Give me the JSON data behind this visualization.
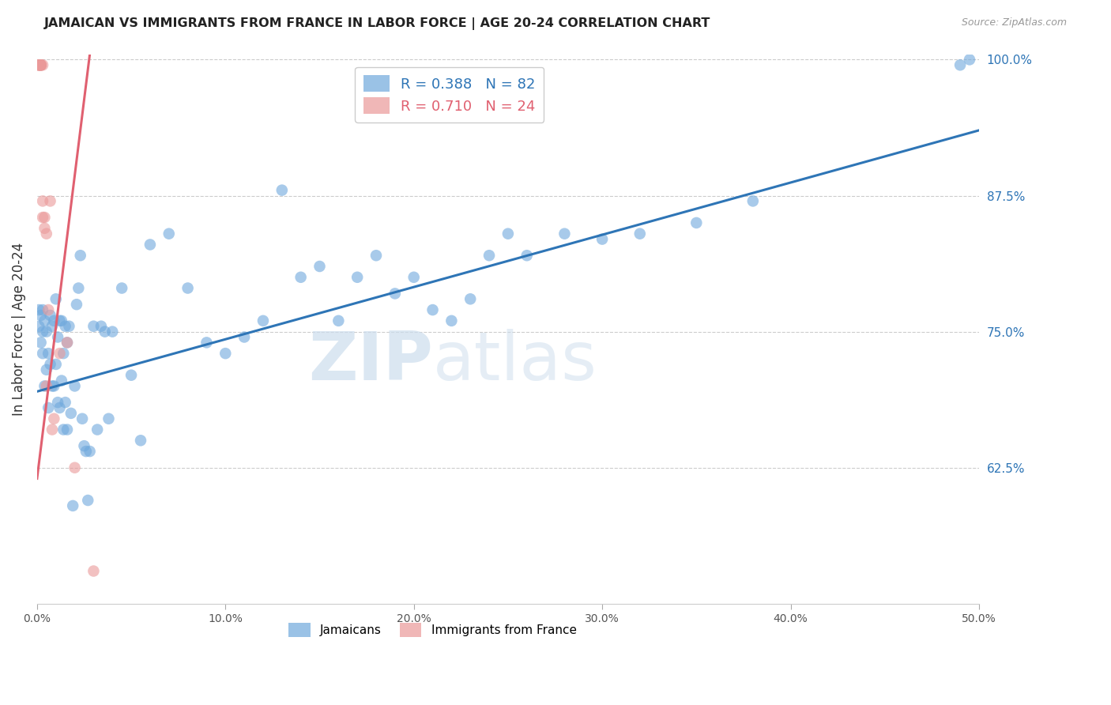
{
  "title": "JAMAICAN VS IMMIGRANTS FROM FRANCE IN LABOR FORCE | AGE 20-24 CORRELATION CHART",
  "source_text": "Source: ZipAtlas.com",
  "ylabel": "In Labor Force | Age 20-24",
  "xlim": [
    0.0,
    0.5
  ],
  "ylim": [
    0.5,
    1.005
  ],
  "yticks": [
    0.625,
    0.75,
    0.875,
    1.0
  ],
  "ytick_labels": [
    "62.5%",
    "75.0%",
    "87.5%",
    "100.0%"
  ],
  "xticks": [
    0.0,
    0.1,
    0.2,
    0.3,
    0.4,
    0.5
  ],
  "xtick_labels": [
    "0.0%",
    "10.0%",
    "20.0%",
    "30.0%",
    "40.0%",
    "50.0%"
  ],
  "blue_color": "#6fa8dc",
  "pink_color": "#ea9999",
  "blue_line_color": "#2E75B6",
  "pink_line_color": "#E06070",
  "R_blue": 0.388,
  "N_blue": 82,
  "R_pink": 0.71,
  "N_pink": 24,
  "legend_label_blue": "Jamaicans",
  "legend_label_pink": "Immigrants from France",
  "watermark_zip": "ZIP",
  "watermark_atlas": "atlas",
  "blue_line_x": [
    0.0,
    0.5
  ],
  "blue_line_y": [
    0.695,
    0.935
  ],
  "pink_line_x": [
    0.0,
    0.028
  ],
  "pink_line_y": [
    0.615,
    1.005
  ],
  "blue_x": [
    0.001,
    0.001,
    0.002,
    0.002,
    0.003,
    0.003,
    0.003,
    0.004,
    0.004,
    0.005,
    0.005,
    0.006,
    0.006,
    0.007,
    0.007,
    0.008,
    0.008,
    0.009,
    0.009,
    0.01,
    0.01,
    0.011,
    0.011,
    0.012,
    0.012,
    0.013,
    0.013,
    0.014,
    0.014,
    0.015,
    0.015,
    0.016,
    0.016,
    0.017,
    0.018,
    0.019,
    0.02,
    0.021,
    0.022,
    0.023,
    0.024,
    0.025,
    0.026,
    0.027,
    0.028,
    0.03,
    0.032,
    0.034,
    0.036,
    0.038,
    0.04,
    0.045,
    0.05,
    0.055,
    0.06,
    0.07,
    0.08,
    0.09,
    0.1,
    0.11,
    0.12,
    0.13,
    0.14,
    0.15,
    0.16,
    0.17,
    0.18,
    0.19,
    0.2,
    0.21,
    0.22,
    0.23,
    0.24,
    0.25,
    0.26,
    0.28,
    0.3,
    0.32,
    0.35,
    0.38,
    0.49,
    0.495
  ],
  "blue_y": [
    0.755,
    0.77,
    0.74,
    0.765,
    0.73,
    0.75,
    0.77,
    0.7,
    0.76,
    0.715,
    0.75,
    0.68,
    0.73,
    0.72,
    0.765,
    0.7,
    0.755,
    0.7,
    0.76,
    0.72,
    0.78,
    0.685,
    0.745,
    0.68,
    0.76,
    0.705,
    0.76,
    0.66,
    0.73,
    0.685,
    0.755,
    0.66,
    0.74,
    0.755,
    0.675,
    0.59,
    0.7,
    0.775,
    0.79,
    0.82,
    0.67,
    0.645,
    0.64,
    0.595,
    0.64,
    0.755,
    0.66,
    0.755,
    0.75,
    0.67,
    0.75,
    0.79,
    0.71,
    0.65,
    0.83,
    0.84,
    0.79,
    0.74,
    0.73,
    0.745,
    0.76,
    0.88,
    0.8,
    0.81,
    0.76,
    0.8,
    0.82,
    0.785,
    0.8,
    0.77,
    0.76,
    0.78,
    0.82,
    0.84,
    0.82,
    0.84,
    0.835,
    0.84,
    0.85,
    0.87,
    0.995,
    1.0
  ],
  "pink_x": [
    0.001,
    0.001,
    0.001,
    0.001,
    0.002,
    0.002,
    0.002,
    0.002,
    0.002,
    0.003,
    0.003,
    0.003,
    0.004,
    0.004,
    0.005,
    0.005,
    0.006,
    0.007,
    0.008,
    0.009,
    0.012,
    0.016,
    0.02,
    0.03
  ],
  "pink_y": [
    0.995,
    0.995,
    0.995,
    0.995,
    0.995,
    0.995,
    0.995,
    0.995,
    0.995,
    0.995,
    0.87,
    0.855,
    0.855,
    0.845,
    0.84,
    0.7,
    0.77,
    0.87,
    0.66,
    0.67,
    0.73,
    0.74,
    0.625,
    0.53
  ]
}
